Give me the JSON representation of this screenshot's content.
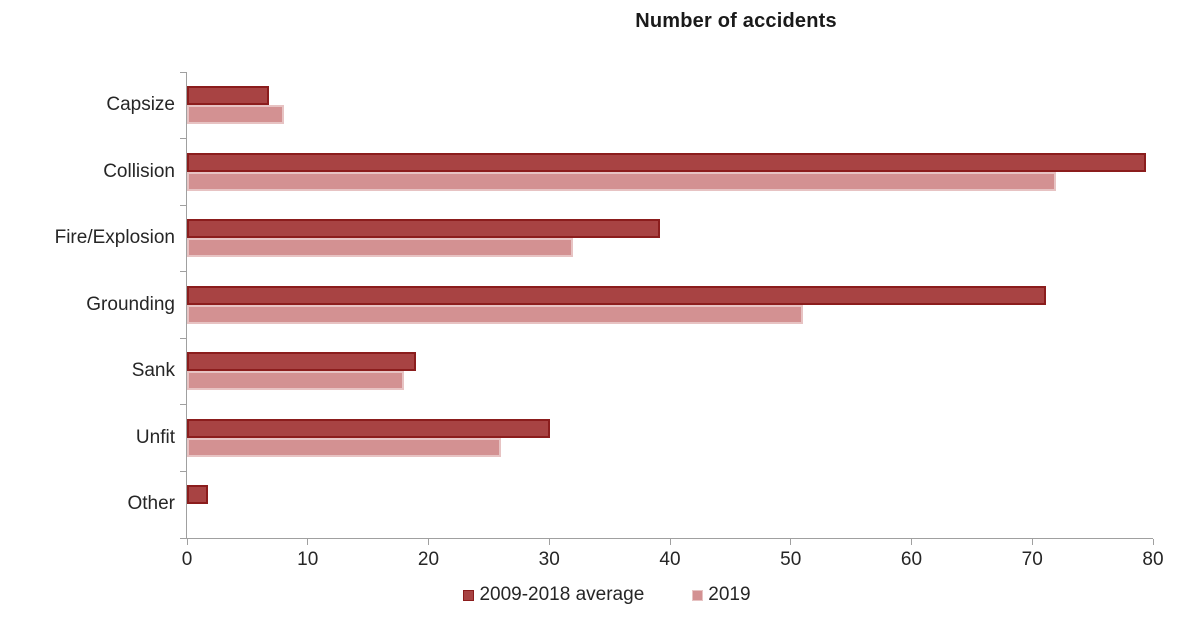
{
  "title": "Number of accidents",
  "colors": {
    "series1_fill": "#a84343",
    "series1_border": "#8b1d1d",
    "series2_fill": "#d39192",
    "series2_border": "#e7c3c3",
    "axis": "#a0a0a0",
    "label_text": "#262626",
    "title_text": "#1a1a1a"
  },
  "chart_data": {
    "type": "bar",
    "orientation": "horizontal",
    "title": "Number of accidents",
    "categories": [
      "Capsize",
      "Collision",
      "Fire/Explosion",
      "Grounding",
      "Sank",
      "Unfit",
      "Other"
    ],
    "series": [
      {
        "name": "2009-2018 average",
        "color": "#a84343",
        "border": "#8b1d1d",
        "values": [
          6.8,
          79.4,
          39.2,
          71.1,
          19.0,
          30.1,
          1.7
        ]
      },
      {
        "name": "2019",
        "color": "#d39192",
        "border": "#e7c3c3",
        "values": [
          8,
          72,
          32,
          51,
          18,
          26,
          0
        ]
      }
    ],
    "xlim": [
      0,
      80
    ],
    "x_ticks": [
      0,
      10,
      20,
      30,
      40,
      50,
      60,
      70,
      80
    ],
    "grid": false,
    "legend_position": "bottom"
  }
}
